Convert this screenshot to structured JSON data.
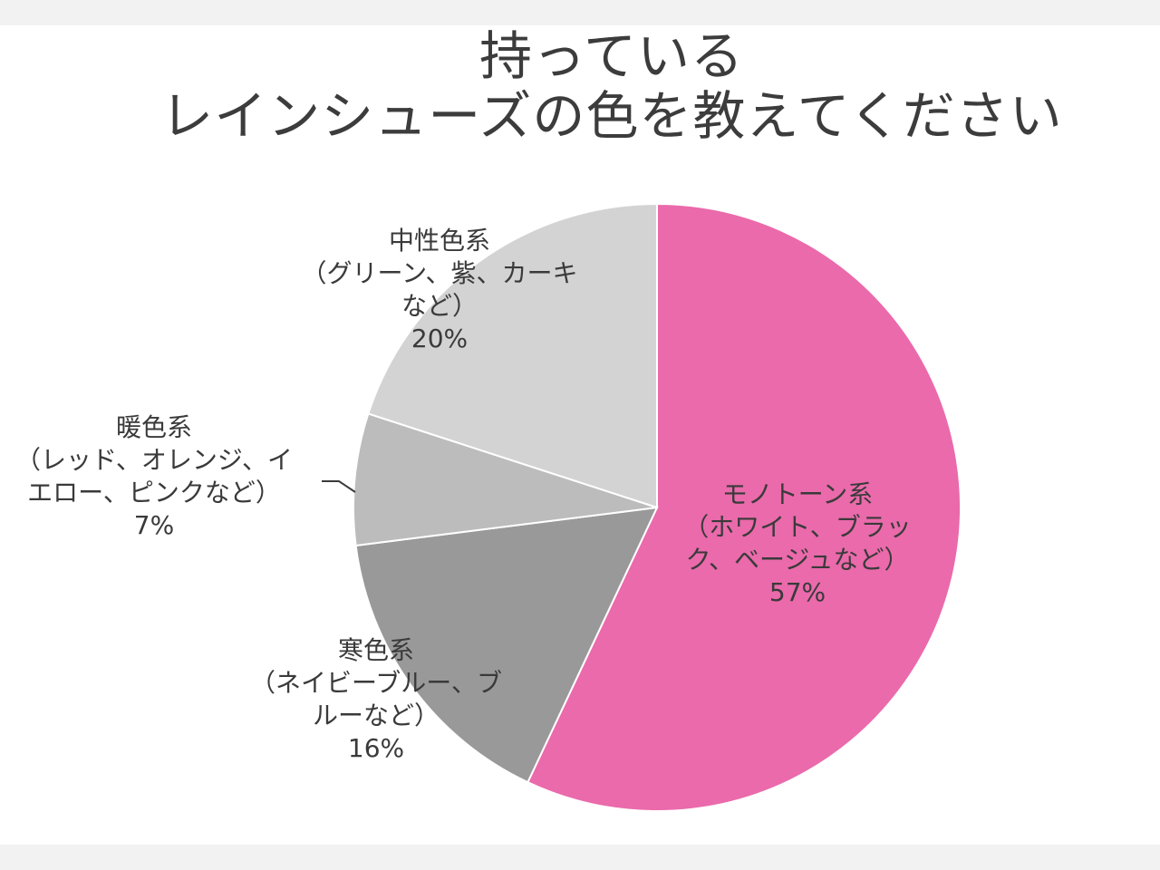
{
  "chart_data": {
    "type": "pie",
    "title": [
      "持っている",
      "レインシューズの色を教えてください"
    ],
    "slices": [
      {
        "label_lines": [
          "モノトーン系",
          "（ホワイト、ブラッ",
          "ク、ベージュなど）"
        ],
        "percent_label": "57%",
        "value": 57,
        "color": "#ea6aab"
      },
      {
        "label_lines": [
          "寒色系",
          "（ネイビーブルー、ブ",
          "ルーなど）"
        ],
        "percent_label": "16%",
        "value": 16,
        "color": "#999999"
      },
      {
        "label_lines": [
          "暖色系",
          "（レッド、オレンジ、イ",
          "エロー、ピンクなど）"
        ],
        "percent_label": "7%",
        "value": 7,
        "color": "#bcbcbc"
      },
      {
        "label_lines": [
          "中性色系",
          "（グリーン、紫、カーキ",
          "など）"
        ],
        "percent_label": "20%",
        "value": 20,
        "color": "#d3d3d3"
      }
    ]
  }
}
